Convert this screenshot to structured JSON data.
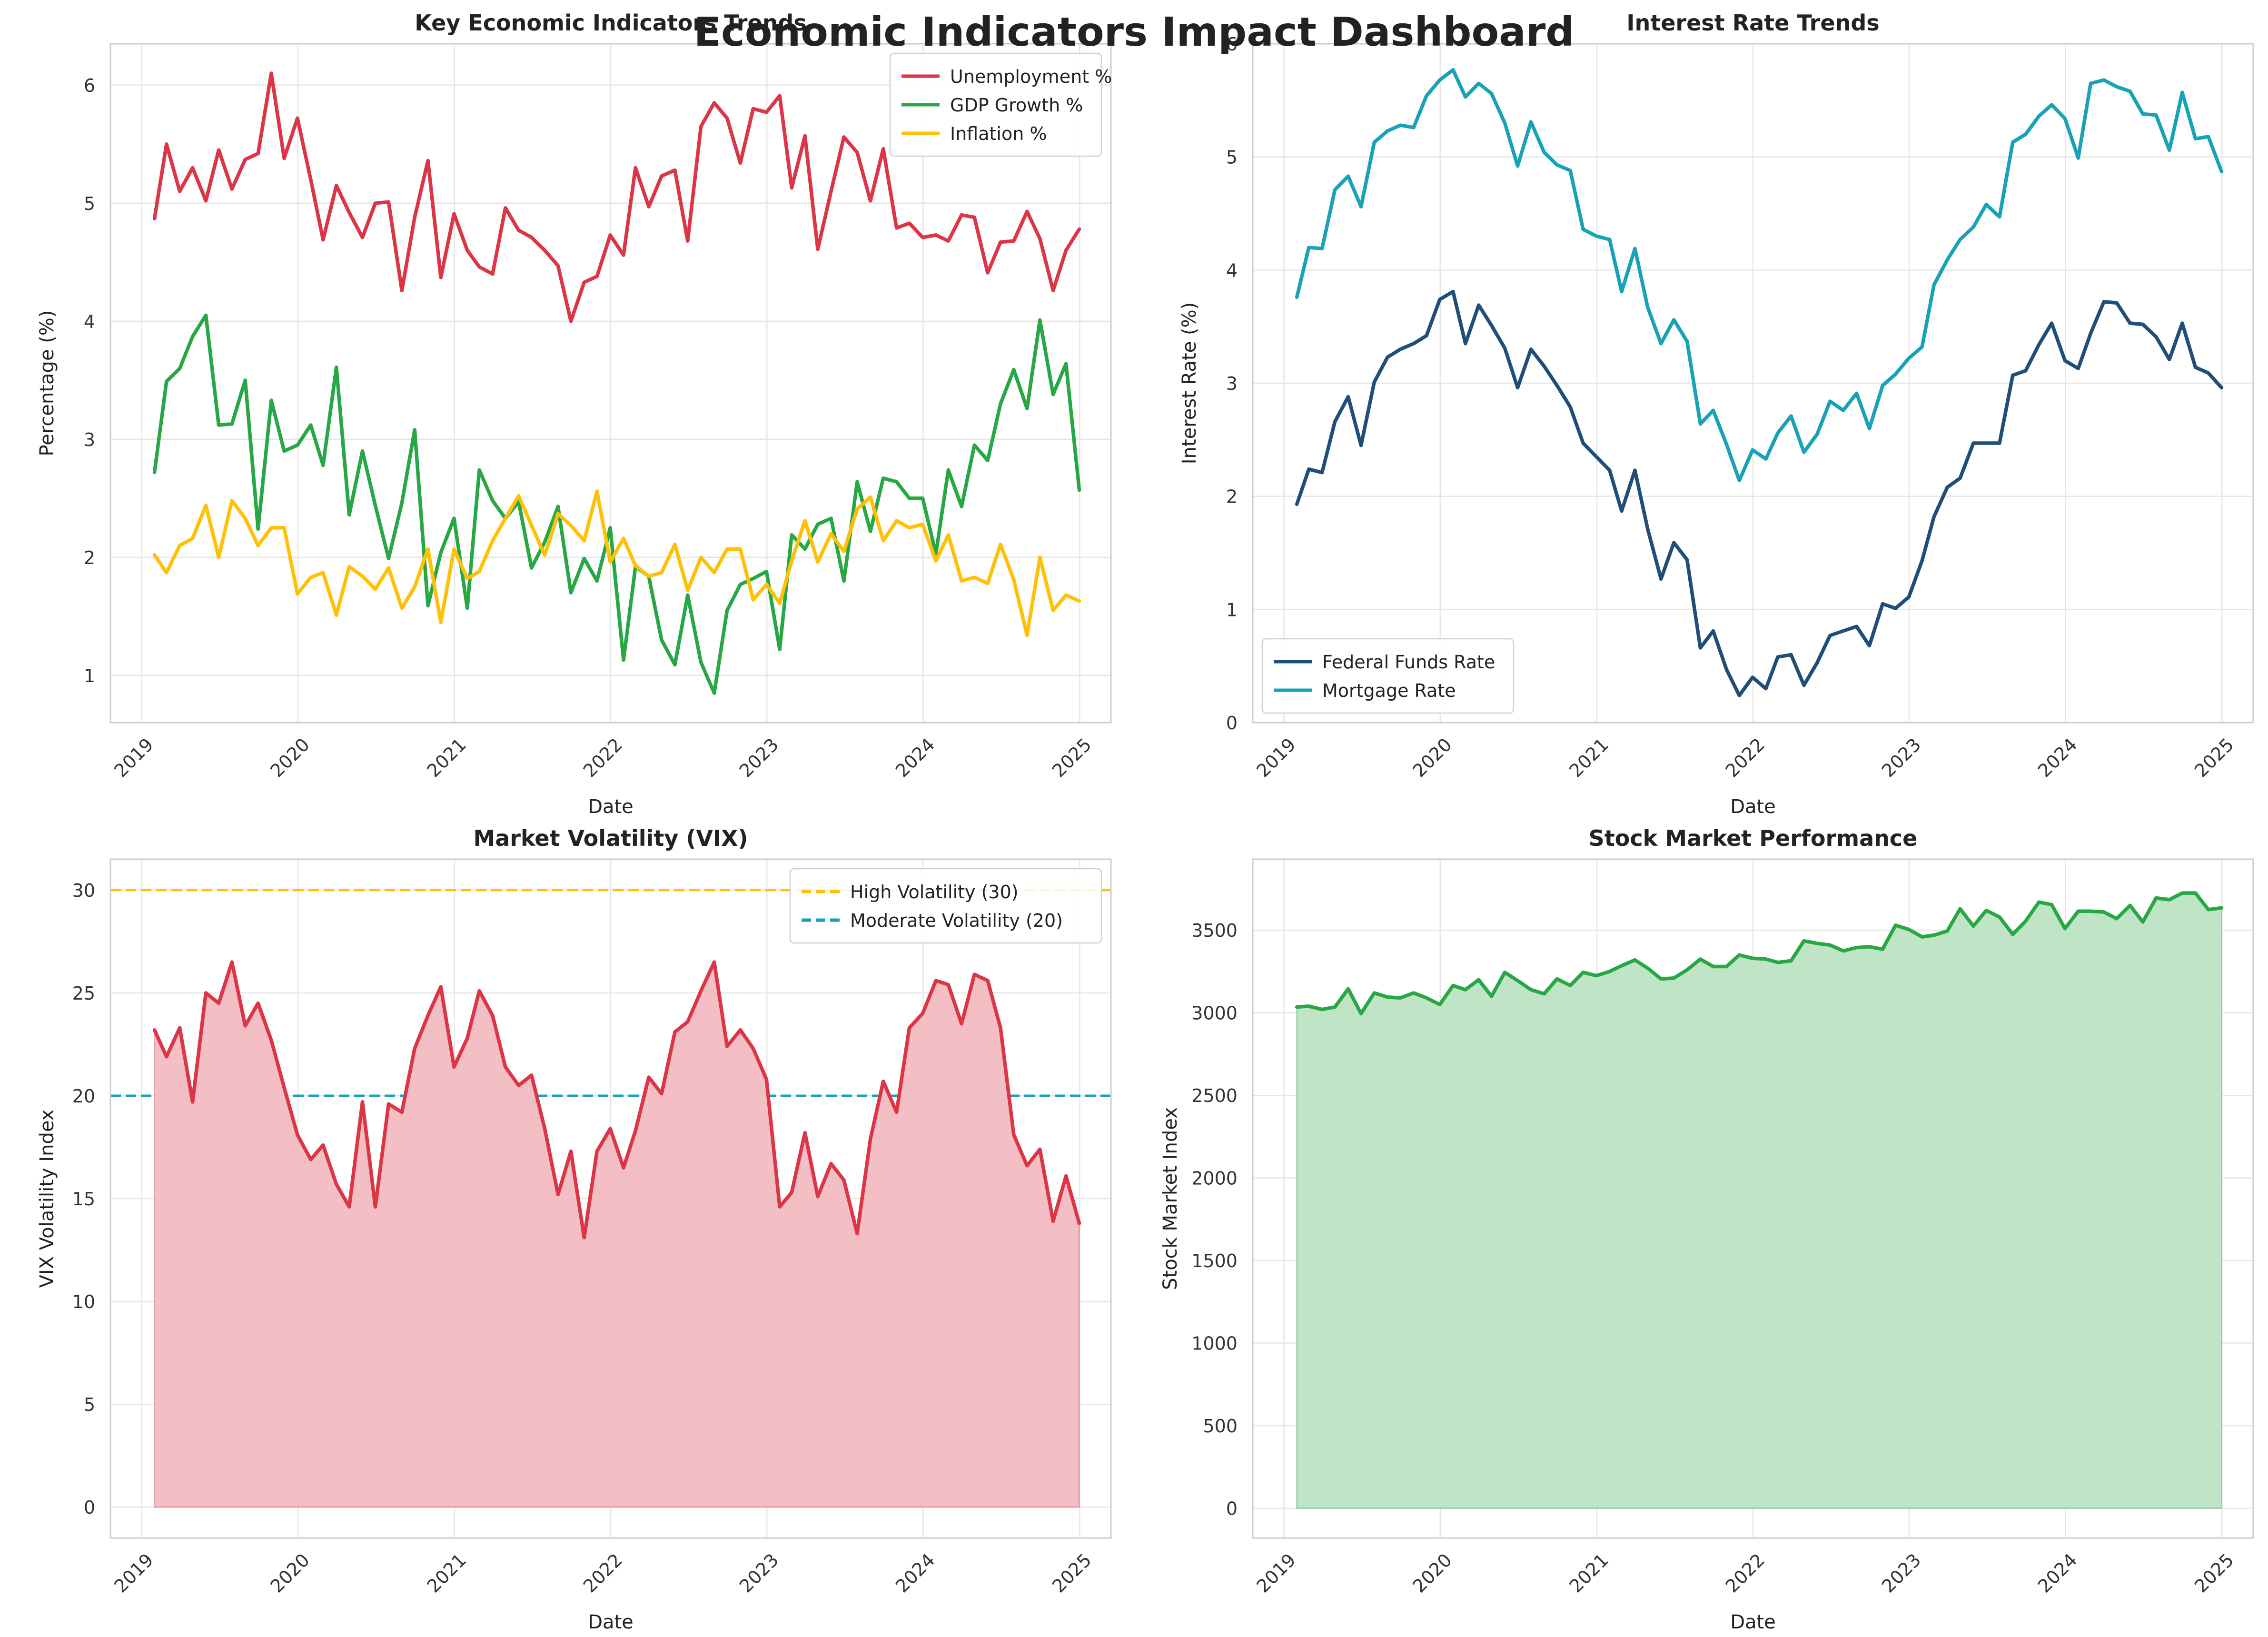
{
  "dashboard": {
    "title": "Economic Indicators Impact Dashboard"
  },
  "chart_data": [
    {
      "id": "indicators",
      "type": "line",
      "title": "Key Economic Indicators Trends",
      "xlabel": "Date",
      "ylabel": "Percentage (%)",
      "xlim": [
        "2018-10-20",
        "2025-03-15"
      ],
      "ylim": [
        0.6,
        6.35
      ],
      "yticks": [
        1,
        2,
        3,
        4,
        5,
        6
      ],
      "xticks": [
        "2019",
        "2020",
        "2021",
        "2022",
        "2023",
        "2024",
        "2025"
      ],
      "grid": true,
      "legend": "top-right",
      "x_start": "2019-01-31",
      "x_freq": "monthly",
      "series": [
        {
          "name": "Unemployment %",
          "color": "#dc3545",
          "values": [
            4.87,
            5.5,
            5.1,
            5.3,
            5.02,
            5.45,
            5.12,
            5.37,
            5.42,
            6.1,
            5.38,
            5.72,
            5.2,
            4.69,
            5.15,
            4.92,
            4.71,
            5.0,
            5.01,
            4.26,
            4.88,
            5.36,
            4.37,
            4.91,
            4.6,
            4.46,
            4.4,
            4.96,
            4.77,
            4.71,
            4.6,
            4.47,
            4.0,
            4.33,
            4.38,
            4.73,
            4.56,
            5.3,
            4.97,
            5.23,
            5.28,
            4.68,
            5.65,
            5.85,
            5.72,
            5.34,
            5.8,
            5.77,
            5.91,
            5.13,
            5.57,
            4.61,
            5.1,
            5.56,
            5.43,
            5.02,
            5.46,
            4.79,
            4.83,
            4.71,
            4.73,
            4.68,
            4.9,
            4.88,
            4.41,
            4.67,
            4.68,
            4.93,
            4.7,
            4.26,
            4.6,
            4.78
          ]
        },
        {
          "name": "GDP Growth %",
          "color": "#28a745",
          "values": [
            2.72,
            3.49,
            3.6,
            3.87,
            4.05,
            3.12,
            3.13,
            3.5,
            2.24,
            3.33,
            2.9,
            2.95,
            3.12,
            2.78,
            3.61,
            2.36,
            2.9,
            2.44,
            1.99,
            2.46,
            3.08,
            1.59,
            2.04,
            2.33,
            1.57,
            2.74,
            2.48,
            2.33,
            2.47,
            1.91,
            2.13,
            2.43,
            1.7,
            1.99,
            1.8,
            2.25,
            1.13,
            1.92,
            1.84,
            1.3,
            1.09,
            1.68,
            1.11,
            0.85,
            1.55,
            1.77,
            1.82,
            1.88,
            1.22,
            2.19,
            2.07,
            2.28,
            2.33,
            1.8,
            2.64,
            2.22,
            2.67,
            2.64,
            2.5,
            2.5,
            2.03,
            2.74,
            2.43,
            2.95,
            2.82,
            3.3,
            3.59,
            3.26,
            4.01,
            3.38,
            3.64,
            2.57
          ]
        },
        {
          "name": "Inflation %",
          "color": "#ffc107",
          "values": [
            2.02,
            1.87,
            2.1,
            2.16,
            2.44,
            2.0,
            2.48,
            2.33,
            2.1,
            2.25,
            2.25,
            1.69,
            1.83,
            1.87,
            1.51,
            1.92,
            1.84,
            1.73,
            1.91,
            1.57,
            1.75,
            2.07,
            1.45,
            2.07,
            1.82,
            1.88,
            2.14,
            2.33,
            2.52,
            2.27,
            2.02,
            2.37,
            2.27,
            2.14,
            2.56,
            1.96,
            2.16,
            1.93,
            1.84,
            1.87,
            2.11,
            1.72,
            2.0,
            1.87,
            2.07,
            2.07,
            1.64,
            1.77,
            1.61,
            1.97,
            2.31,
            1.96,
            2.2,
            2.05,
            2.41,
            2.51,
            2.14,
            2.31,
            2.25,
            2.28,
            1.97,
            2.19,
            1.8,
            1.83,
            1.78,
            2.11,
            1.81,
            1.34,
            2.0,
            1.55,
            1.68,
            1.63
          ]
        }
      ]
    },
    {
      "id": "rates",
      "type": "line",
      "title": "Interest Rate Trends",
      "xlabel": "Date",
      "ylabel": "Interest Rate (%)",
      "xlim": [
        "2018-10-20",
        "2025-03-15"
      ],
      "ylim": [
        0,
        6.0
      ],
      "yticks": [
        0,
        1,
        2,
        3,
        4,
        5,
        6
      ],
      "xticks": [
        "2019",
        "2020",
        "2021",
        "2022",
        "2023",
        "2024",
        "2025"
      ],
      "grid": true,
      "legend": "bottom-left",
      "x_start": "2019-01-31",
      "x_freq": "monthly",
      "series": [
        {
          "name": "Federal Funds Rate",
          "color": "#1f4e79",
          "values": [
            1.93,
            2.24,
            2.21,
            2.66,
            2.88,
            2.45,
            3.01,
            3.23,
            3.3,
            3.35,
            3.42,
            3.74,
            3.81,
            3.35,
            3.69,
            3.51,
            3.31,
            2.96,
            3.3,
            3.15,
            2.98,
            2.79,
            2.47,
            2.35,
            2.23,
            1.87,
            2.23,
            1.71,
            1.27,
            1.59,
            1.44,
            0.66,
            0.81,
            0.47,
            0.24,
            0.4,
            0.3,
            0.58,
            0.6,
            0.33,
            0.53,
            0.77,
            0.81,
            0.85,
            0.68,
            1.05,
            1.01,
            1.11,
            1.43,
            1.82,
            2.08,
            2.16,
            2.47,
            2.47,
            2.47,
            3.07,
            3.11,
            3.34,
            3.53,
            3.2,
            3.13,
            3.44,
            3.72,
            3.71,
            3.53,
            3.52,
            3.41,
            3.21,
            3.53,
            3.14,
            3.09,
            2.96
          ]
        },
        {
          "name": "Mortgage Rate",
          "color": "#17a2b8",
          "values": [
            3.76,
            4.2,
            4.19,
            4.71,
            4.83,
            4.56,
            5.13,
            5.23,
            5.28,
            5.26,
            5.54,
            5.68,
            5.77,
            5.53,
            5.65,
            5.56,
            5.3,
            4.92,
            5.31,
            5.04,
            4.93,
            4.88,
            4.36,
            4.3,
            4.27,
            3.81,
            4.19,
            3.67,
            3.35,
            3.56,
            3.37,
            2.64,
            2.76,
            2.46,
            2.14,
            2.41,
            2.33,
            2.56,
            2.71,
            2.39,
            2.55,
            2.84,
            2.76,
            2.91,
            2.6,
            2.98,
            3.08,
            3.22,
            3.32,
            3.87,
            4.09,
            4.27,
            4.38,
            4.58,
            4.47,
            5.13,
            5.2,
            5.36,
            5.46,
            5.34,
            4.99,
            5.65,
            5.68,
            5.62,
            5.58,
            5.38,
            5.37,
            5.06,
            5.57,
            5.16,
            5.18,
            4.87
          ]
        }
      ]
    },
    {
      "id": "vix",
      "type": "area",
      "title": "Market Volatility (VIX)",
      "xlabel": "Date",
      "ylabel": "VIX Volatility Index",
      "xlim": [
        "2018-10-20",
        "2025-03-15"
      ],
      "ylim": [
        -1.5,
        31.5
      ],
      "yticks": [
        0,
        5,
        10,
        15,
        20,
        25,
        30
      ],
      "xticks": [
        "2019",
        "2020",
        "2021",
        "2022",
        "2023",
        "2024",
        "2025"
      ],
      "grid": true,
      "legend": "top-right",
      "x_start": "2019-01-31",
      "x_freq": "monthly",
      "series": [
        {
          "name": "",
          "color": "#dc3545",
          "fill": "#f3bfc5",
          "values": [
            23.2,
            21.9,
            23.3,
            19.7,
            25.0,
            24.5,
            26.5,
            23.4,
            24.5,
            22.7,
            20.4,
            18.1,
            16.9,
            17.6,
            15.7,
            14.6,
            19.7,
            14.6,
            19.6,
            19.2,
            22.3,
            23.9,
            25.3,
            21.4,
            22.8,
            25.1,
            23.9,
            21.4,
            20.5,
            21.0,
            18.4,
            15.2,
            17.3,
            13.1,
            17.3,
            18.4,
            16.5,
            18.3,
            20.9,
            20.1,
            23.1,
            23.6,
            25.1,
            26.5,
            22.4,
            23.2,
            22.3,
            20.8,
            14.6,
            15.3,
            18.2,
            15.1,
            16.7,
            15.9,
            13.3,
            17.9,
            20.7,
            19.2,
            23.3,
            24.0,
            25.6,
            25.4,
            23.5,
            25.9,
            25.6,
            23.3,
            18.1,
            16.6,
            17.4,
            13.9,
            16.1,
            13.8
          ]
        }
      ],
      "reference_lines": [
        {
          "name": "High Volatility (30)",
          "value": 30,
          "color": "#ffc107"
        },
        {
          "name": "Moderate Volatility (20)",
          "value": 20,
          "color": "#17a2b8"
        }
      ]
    },
    {
      "id": "stock",
      "type": "area",
      "title": "Stock Market Performance",
      "xlabel": "Date",
      "ylabel": "Stock Market Index",
      "xlim": [
        "2018-10-20",
        "2025-03-15"
      ],
      "ylim": [
        -180,
        3930
      ],
      "yticks": [
        0,
        500,
        1000,
        1500,
        2000,
        2500,
        3000,
        3500
      ],
      "xticks": [
        "2019",
        "2020",
        "2021",
        "2022",
        "2023",
        "2024",
        "2025"
      ],
      "grid": true,
      "legend": "none",
      "x_start": "2019-01-31",
      "x_freq": "monthly",
      "series": [
        {
          "name": "",
          "color": "#28a745",
          "fill": "#bfe5c6",
          "values": [
            3035,
            3040,
            3020,
            3035,
            3145,
            2995,
            3120,
            3095,
            3090,
            3120,
            3090,
            3050,
            3165,
            3140,
            3200,
            3100,
            3245,
            3195,
            3140,
            3115,
            3205,
            3165,
            3245,
            3225,
            3250,
            3285,
            3320,
            3270,
            3205,
            3210,
            3260,
            3325,
            3280,
            3280,
            3350,
            3330,
            3325,
            3305,
            3315,
            3435,
            3420,
            3410,
            3375,
            3395,
            3400,
            3385,
            3530,
            3505,
            3460,
            3470,
            3495,
            3630,
            3525,
            3620,
            3580,
            3475,
            3555,
            3670,
            3655,
            3510,
            3615,
            3615,
            3610,
            3570,
            3650,
            3550,
            3695,
            3685,
            3725,
            3725,
            3625,
            3635
          ]
        }
      ]
    }
  ]
}
